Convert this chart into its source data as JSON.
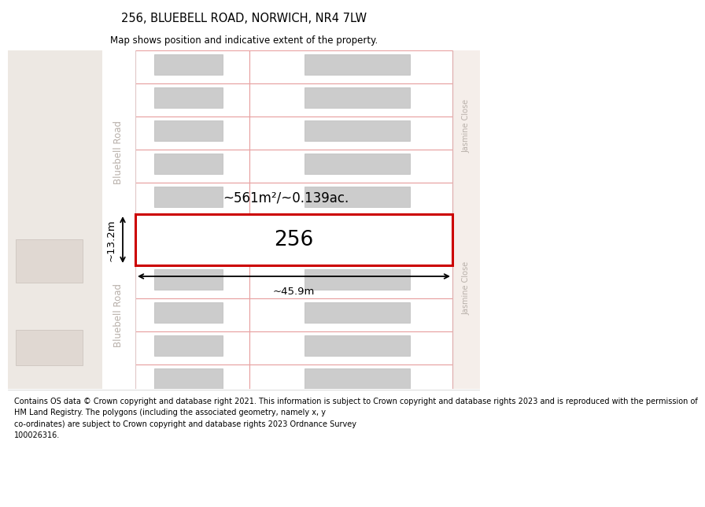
{
  "title": "256, BLUEBELL ROAD, NORWICH, NR4 7LW",
  "subtitle": "Map shows position and indicative extent of the property.",
  "footer": "Contains OS data © Crown copyright and database right 2021. This information is subject to Crown copyright and database rights 2023 and is reproduced with the permission of\nHM Land Registry. The polygons (including the associated geometry, namely x, y\nco-ordinates) are subject to Crown copyright and database rights 2023 Ordnance Survey\n100026316.",
  "highlight_color": "#cc0000",
  "plot_outline_color": "#e8a0a0",
  "building_fill": "#cccccc",
  "building_edge": "#bbbbbb",
  "plot_fill": "#ffffff",
  "road_fill": "#ffffff",
  "left_bg": "#ede8e3",
  "right_strip": "#f5eeea",
  "map_bg": "#faf8f6",
  "area_text": "~561m²/~0.139ac.",
  "number_text": "256",
  "dim_width": "~45.9m",
  "dim_height": "~13.2m",
  "road_label": "Bluebell Road",
  "jasmine_label": "Jasmine Close"
}
